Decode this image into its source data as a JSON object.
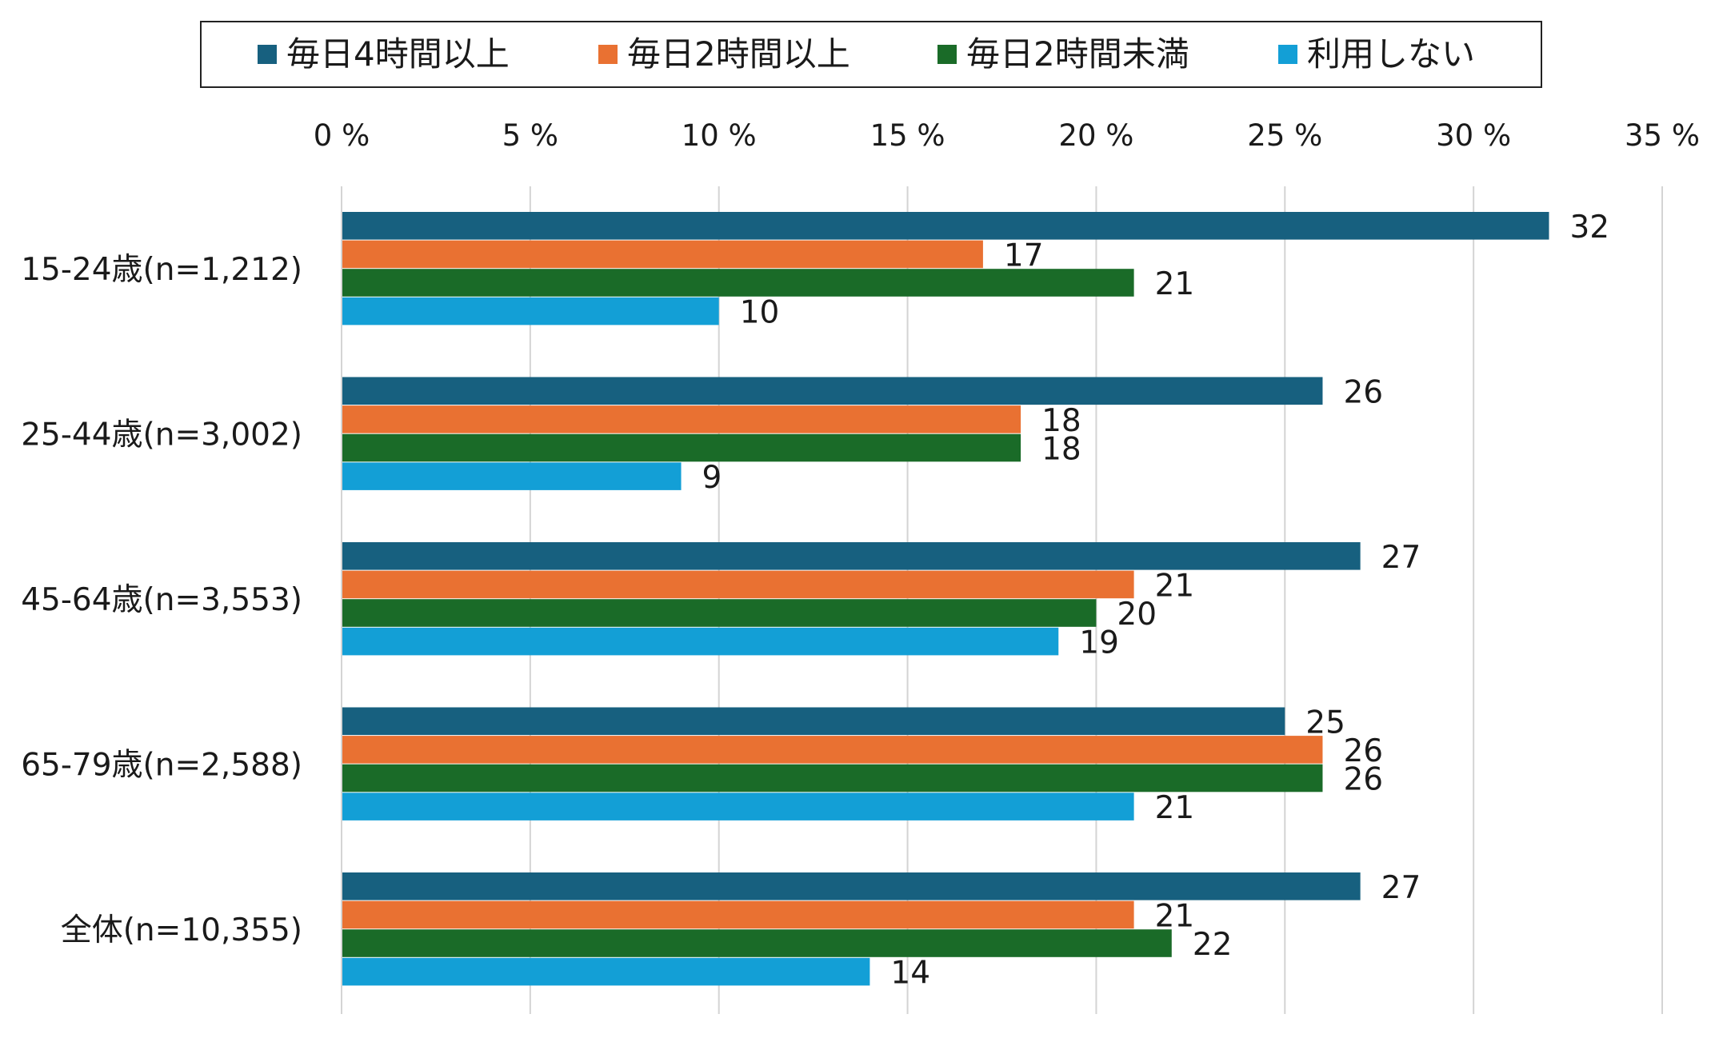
{
  "chart_data": {
    "type": "bar",
    "orientation": "horizontal",
    "title": "",
    "xlabel": "",
    "ylabel": "",
    "xlim": [
      0,
      35
    ],
    "x_ticks": [
      "0 %",
      "5 %",
      "10 %",
      "15 %",
      "20 %",
      "25 %",
      "30 %",
      "35 %"
    ],
    "x_axis_position": "top",
    "grid": true,
    "legend_position": "top",
    "categories": [
      "15-24歳(n=1,212)",
      "25-44歳(n=3,002)",
      "45-64歳(n=3,553)",
      "65-79歳(n=2,588)",
      "全体(n=10,355)"
    ],
    "series": [
      {
        "name": "毎日4時間以上",
        "color": "#17607f",
        "values": [
          32,
          26,
          27,
          25,
          27
        ],
        "labels": [
          "32",
          "26",
          "27",
          "25",
          "27"
        ]
      },
      {
        "name": "毎日2時間以上",
        "color": "#e97132",
        "values": [
          17,
          18,
          21,
          26,
          21
        ],
        "labels": [
          "17",
          "18",
          "21",
          "26",
          "21"
        ]
      },
      {
        "name": "毎日2時間未満",
        "color": "#1a6b28",
        "values": [
          21,
          18,
          20,
          26,
          22
        ],
        "labels": [
          "21",
          "18",
          "20",
          "26",
          "22"
        ]
      },
      {
        "name": "利用しない",
        "color": "#139fd6",
        "values": [
          10,
          9,
          19,
          21,
          14
        ],
        "labels": [
          "10",
          "9",
          "19",
          "21",
          "14"
        ]
      }
    ]
  }
}
